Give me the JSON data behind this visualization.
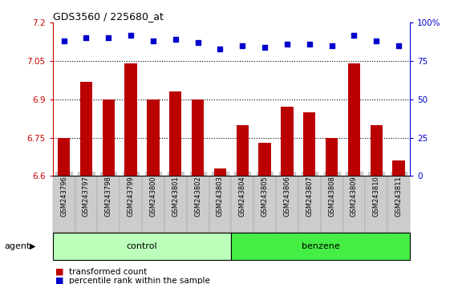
{
  "title": "GDS3560 / 225680_at",
  "samples": [
    "GSM243796",
    "GSM243797",
    "GSM243798",
    "GSM243799",
    "GSM243800",
    "GSM243801",
    "GSM243802",
    "GSM243803",
    "GSM243804",
    "GSM243805",
    "GSM243806",
    "GSM243807",
    "GSM243808",
    "GSM243809",
    "GSM243810",
    "GSM243811"
  ],
  "bar_values": [
    6.75,
    6.97,
    6.9,
    7.04,
    6.9,
    6.93,
    6.9,
    6.63,
    6.8,
    6.73,
    6.87,
    6.85,
    6.75,
    7.04,
    6.8,
    6.66
  ],
  "percentile_values": [
    88,
    90,
    90,
    92,
    88,
    89,
    87,
    83,
    85,
    84,
    86,
    86,
    85,
    92,
    88,
    85
  ],
  "bar_color": "#bb0000",
  "dot_color": "#0000cc",
  "ylim_left": [
    6.6,
    7.2
  ],
  "ylim_right": [
    0,
    100
  ],
  "yticks_left": [
    6.6,
    6.75,
    6.9,
    7.05,
    7.2
  ],
  "yticks_right": [
    0,
    25,
    50,
    75,
    100
  ],
  "grid_values": [
    6.75,
    6.9,
    7.05
  ],
  "n_control": 8,
  "n_benzene": 8,
  "control_color": "#bbffbb",
  "benzene_color": "#44ee44",
  "xtick_bg_color": "#cccccc",
  "bg_color": "#ffffff",
  "left_axis_color": "#cc0000",
  "right_axis_color": "#0000cc",
  "legend_bar_label": "transformed count",
  "legend_dot_label": "percentile rank within the sample",
  "agent_label": "agent",
  "control_label": "control",
  "benzene_label": "benzene"
}
